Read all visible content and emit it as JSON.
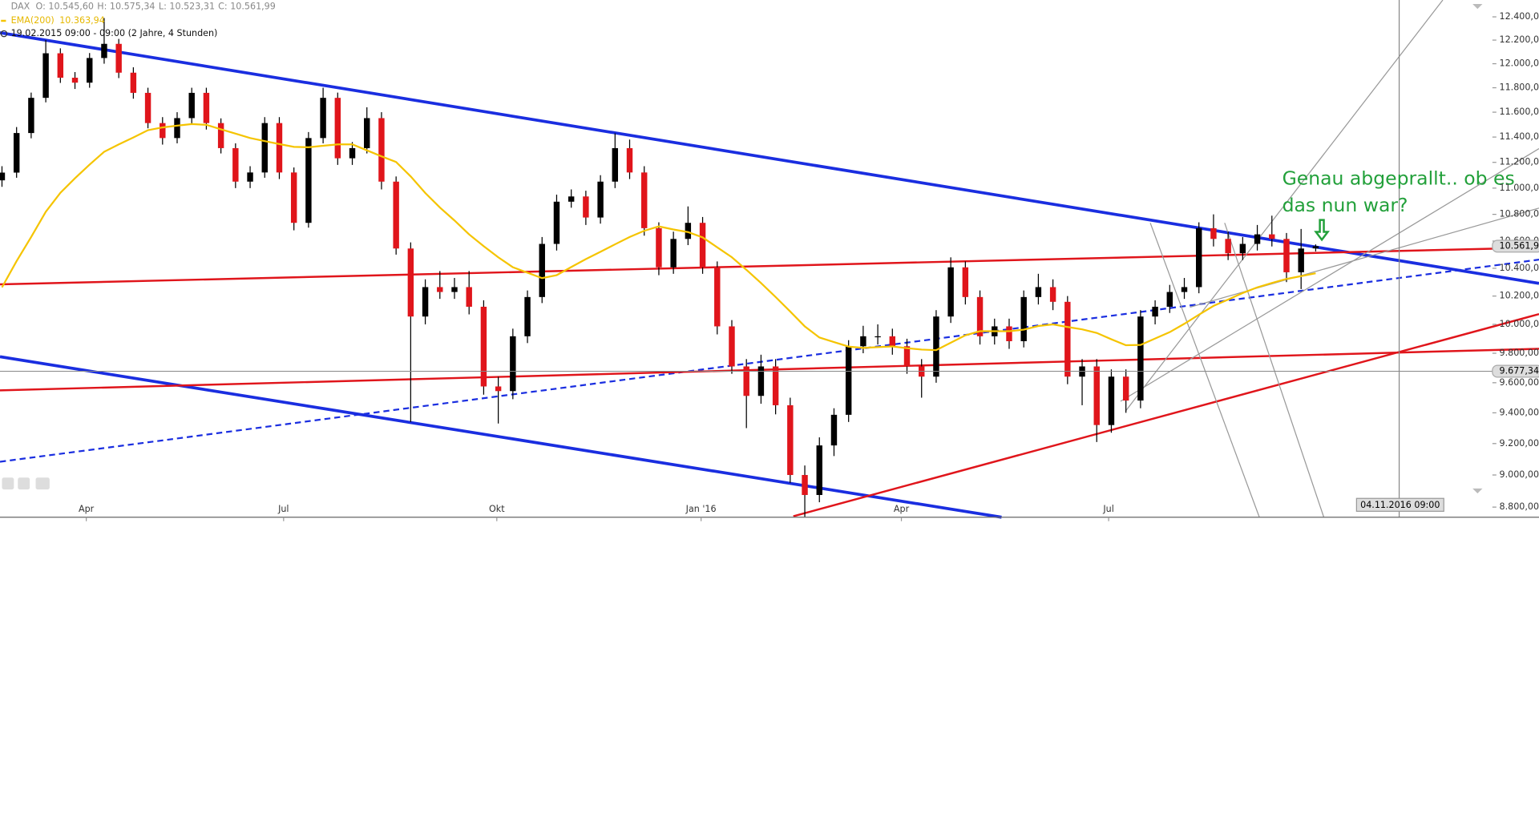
{
  "header": {
    "symbol": "DAX",
    "open": "O: 10.545,60",
    "high": "H: 10.575,34",
    "low": "L: 10.523,31",
    "close": "C: 10.561,99",
    "indicator": "EMA(200)",
    "indicator_value": "10.363,94",
    "range": "19.02.2015 09:00 - 09:00 (2 Jahre, 4 Stunden)"
  },
  "chart_data": {
    "type": "candlestick",
    "log_scale": true,
    "up_color": "#000000",
    "down_color": "#e0151b",
    "open": [
      11060,
      11120,
      11432,
      11717,
      12088,
      11883,
      11842,
      12048,
      12168,
      11925,
      11758,
      11512,
      11392,
      11552,
      11758,
      11512,
      11312,
      11050,
      11121,
      11512,
      11121,
      10736,
      11392,
      11717,
      11232,
      11312,
      11552,
      11050,
      10545,
      10055,
      10264,
      10229,
      10264,
      10124,
      9575,
      9544,
      9917,
      10193,
      10579,
      10896,
      10936,
      10776,
      11050,
      11312,
      11121,
      10696,
      10407,
      10616,
      10736,
      10407,
      9986,
      9710,
      9512,
      9710,
      9450,
      9000,
      8875,
      9188,
      9387,
      9848,
      9917,
      9917,
      9848,
      9710,
      9641,
      10055,
      10407,
      10193,
      9917,
      9986,
      9883,
      10193,
      10264,
      10159,
      9641,
      9710,
      9320,
      9641,
      9481,
      10055,
      10124,
      10229,
      10264,
      10696,
      10616,
      10510,
      10579,
      10650,
      10616,
      10371,
      10545.6
    ],
    "high": [
      11170,
      11480,
      11760,
      12200,
      12130,
      11930,
      12090,
      12390,
      12210,
      11970,
      11800,
      11560,
      11600,
      11800,
      11800,
      11550,
      11350,
      11170,
      11560,
      11560,
      11160,
      11440,
      11800,
      11760,
      11360,
      11640,
      11600,
      11090,
      10590,
      10320,
      10380,
      10330,
      10380,
      10170,
      9640,
      9970,
      10240,
      10630,
      10950,
      10990,
      10980,
      11100,
      11430,
      11380,
      11170,
      10740,
      10670,
      10860,
      10780,
      10450,
      10030,
      9760,
      9790,
      9760,
      9500,
      9060,
      9240,
      9430,
      9890,
      9990,
      10000,
      9970,
      9900,
      9760,
      10100,
      10480,
      10450,
      10240,
      10040,
      10040,
      10240,
      10360,
      10320,
      10200,
      9760,
      9760,
      9690,
      9690,
      10100,
      10170,
      10280,
      10330,
      10740,
      10800,
      10670,
      10630,
      10720,
      10790,
      10660,
      10690,
      10575.34
    ],
    "low": [
      11010,
      11080,
      11390,
      11680,
      11840,
      11790,
      11800,
      12000,
      11880,
      11710,
      11470,
      11340,
      11350,
      11510,
      11460,
      11270,
      11000,
      11000,
      11080,
      11070,
      10680,
      10700,
      11350,
      11180,
      11180,
      11270,
      10990,
      10500,
      9340,
      10000,
      10180,
      10180,
      10070,
      9520,
      9330,
      9490,
      9870,
      10150,
      10530,
      10850,
      10720,
      10730,
      11000,
      11070,
      10640,
      10350,
      10360,
      10570,
      10360,
      9930,
      9660,
      9300,
      9460,
      9390,
      8950,
      8740,
      8830,
      9120,
      9340,
      9800,
      9860,
      9790,
      9660,
      9500,
      9600,
      10010,
      10140,
      9860,
      9860,
      9830,
      9840,
      10140,
      10100,
      9590,
      9450,
      9210,
      9270,
      9400,
      9430,
      10000,
      10080,
      10180,
      10220,
      10560,
      10460,
      10460,
      10530,
      10560,
      10300,
      10250,
      10523.31
    ],
    "close": [
      11120,
      11432,
      11717,
      12088,
      11883,
      11842,
      12048,
      12168,
      11925,
      11758,
      11512,
      11392,
      11552,
      11758,
      11512,
      11312,
      11050,
      11121,
      11512,
      11121,
      10736,
      11392,
      11717,
      11232,
      11312,
      11552,
      11050,
      10545,
      10055,
      10264,
      10229,
      10264,
      10124,
      9575,
      9544,
      9917,
      10193,
      10579,
      10896,
      10936,
      10776,
      11050,
      11312,
      11121,
      10696,
      10407,
      10616,
      10736,
      10407,
      9986,
      9710,
      9512,
      9710,
      9450,
      9000,
      8875,
      9188,
      9387,
      9848,
      9917,
      9917,
      9848,
      9710,
      9641,
      10055,
      10407,
      10193,
      9917,
      9986,
      9883,
      10193,
      10264,
      10159,
      9641,
      9710,
      9320,
      9641,
      9481,
      10055,
      10124,
      10229,
      10264,
      10696,
      10616,
      10510,
      10579,
      10650,
      10616,
      10371,
      10545,
      10561.99
    ],
    "series": [
      {
        "name": "EMA(200)",
        "color": "#f5c400",
        "values": [
          10262,
          10452,
          10630,
          10820,
          10964,
          11076,
          11182,
          11283,
          11342,
          11397,
          11455,
          11477,
          11491,
          11504,
          11498,
          11462,
          11428,
          11392,
          11368,
          11344,
          11322,
          11319,
          11331,
          11342,
          11342,
          11295,
          11247,
          11203,
          11090,
          10962,
          10852,
          10754,
          10650,
          10562,
          10480,
          10408,
          10368,
          10329,
          10350,
          10409,
          10467,
          10521,
          10576,
          10630,
          10677,
          10709,
          10686,
          10667,
          10627,
          10554,
          10481,
          10389,
          10294,
          10193,
          10090,
          9986,
          9909,
          9877,
          9846,
          9837,
          9842,
          9847,
          9835,
          9825,
          9821,
          9872,
          9924,
          9952,
          9952,
          9952,
          9963,
          9989,
          10000,
          9982,
          9965,
          9940,
          9896,
          9855,
          9857,
          9902,
          9946,
          10004,
          10068,
          10130,
          10175,
          10222,
          10262,
          10294,
          10323,
          10343,
          10363.94
        ]
      }
    ],
    "x_labels": [
      "Apr",
      "Jul",
      "Okt",
      "Jan '16",
      "Apr",
      "Jul"
    ],
    "ylim": [
      8738,
      12547
    ],
    "yticks": [
      {
        "value": 8800,
        "label": "8.800,00"
      },
      {
        "value": 9000,
        "label": "9.000,00"
      },
      {
        "value": 9200,
        "label": "9.200,00"
      },
      {
        "value": 9400,
        "label": "9.400,00"
      },
      {
        "value": 9600,
        "label": "9.600,00"
      },
      {
        "value": 9800,
        "label": "9.800,00"
      },
      {
        "value": 10000,
        "label": "10.000,00"
      },
      {
        "value": 10200,
        "label": "10.200,00"
      },
      {
        "value": 10400,
        "label": "10.400,00"
      },
      {
        "value": 10600,
        "label": "10.600,00"
      },
      {
        "value": 10800,
        "label": "10.800,00"
      },
      {
        "value": 11000,
        "label": "11.000,00"
      },
      {
        "value": 11200,
        "label": "11.200,00"
      },
      {
        "value": 11400,
        "label": "11.400,00"
      },
      {
        "value": 11600,
        "label": "11.600,00"
      },
      {
        "value": 11800,
        "label": "11.800,00"
      },
      {
        "value": 12000,
        "label": "12.000,00"
      },
      {
        "value": 12200,
        "label": "12.200,00"
      },
      {
        "value": 12400,
        "label": "12.400,00"
      }
    ],
    "price_markers": [
      {
        "value": 10561.99,
        "label": "10.561,99"
      },
      {
        "value": 9677.34,
        "label": "9.677,34"
      }
    ],
    "cursor_label": "04.11.2016 09:00",
    "annotation": [
      "Genau abgeprallt.. ob es",
      "das nun war?"
    ]
  }
}
